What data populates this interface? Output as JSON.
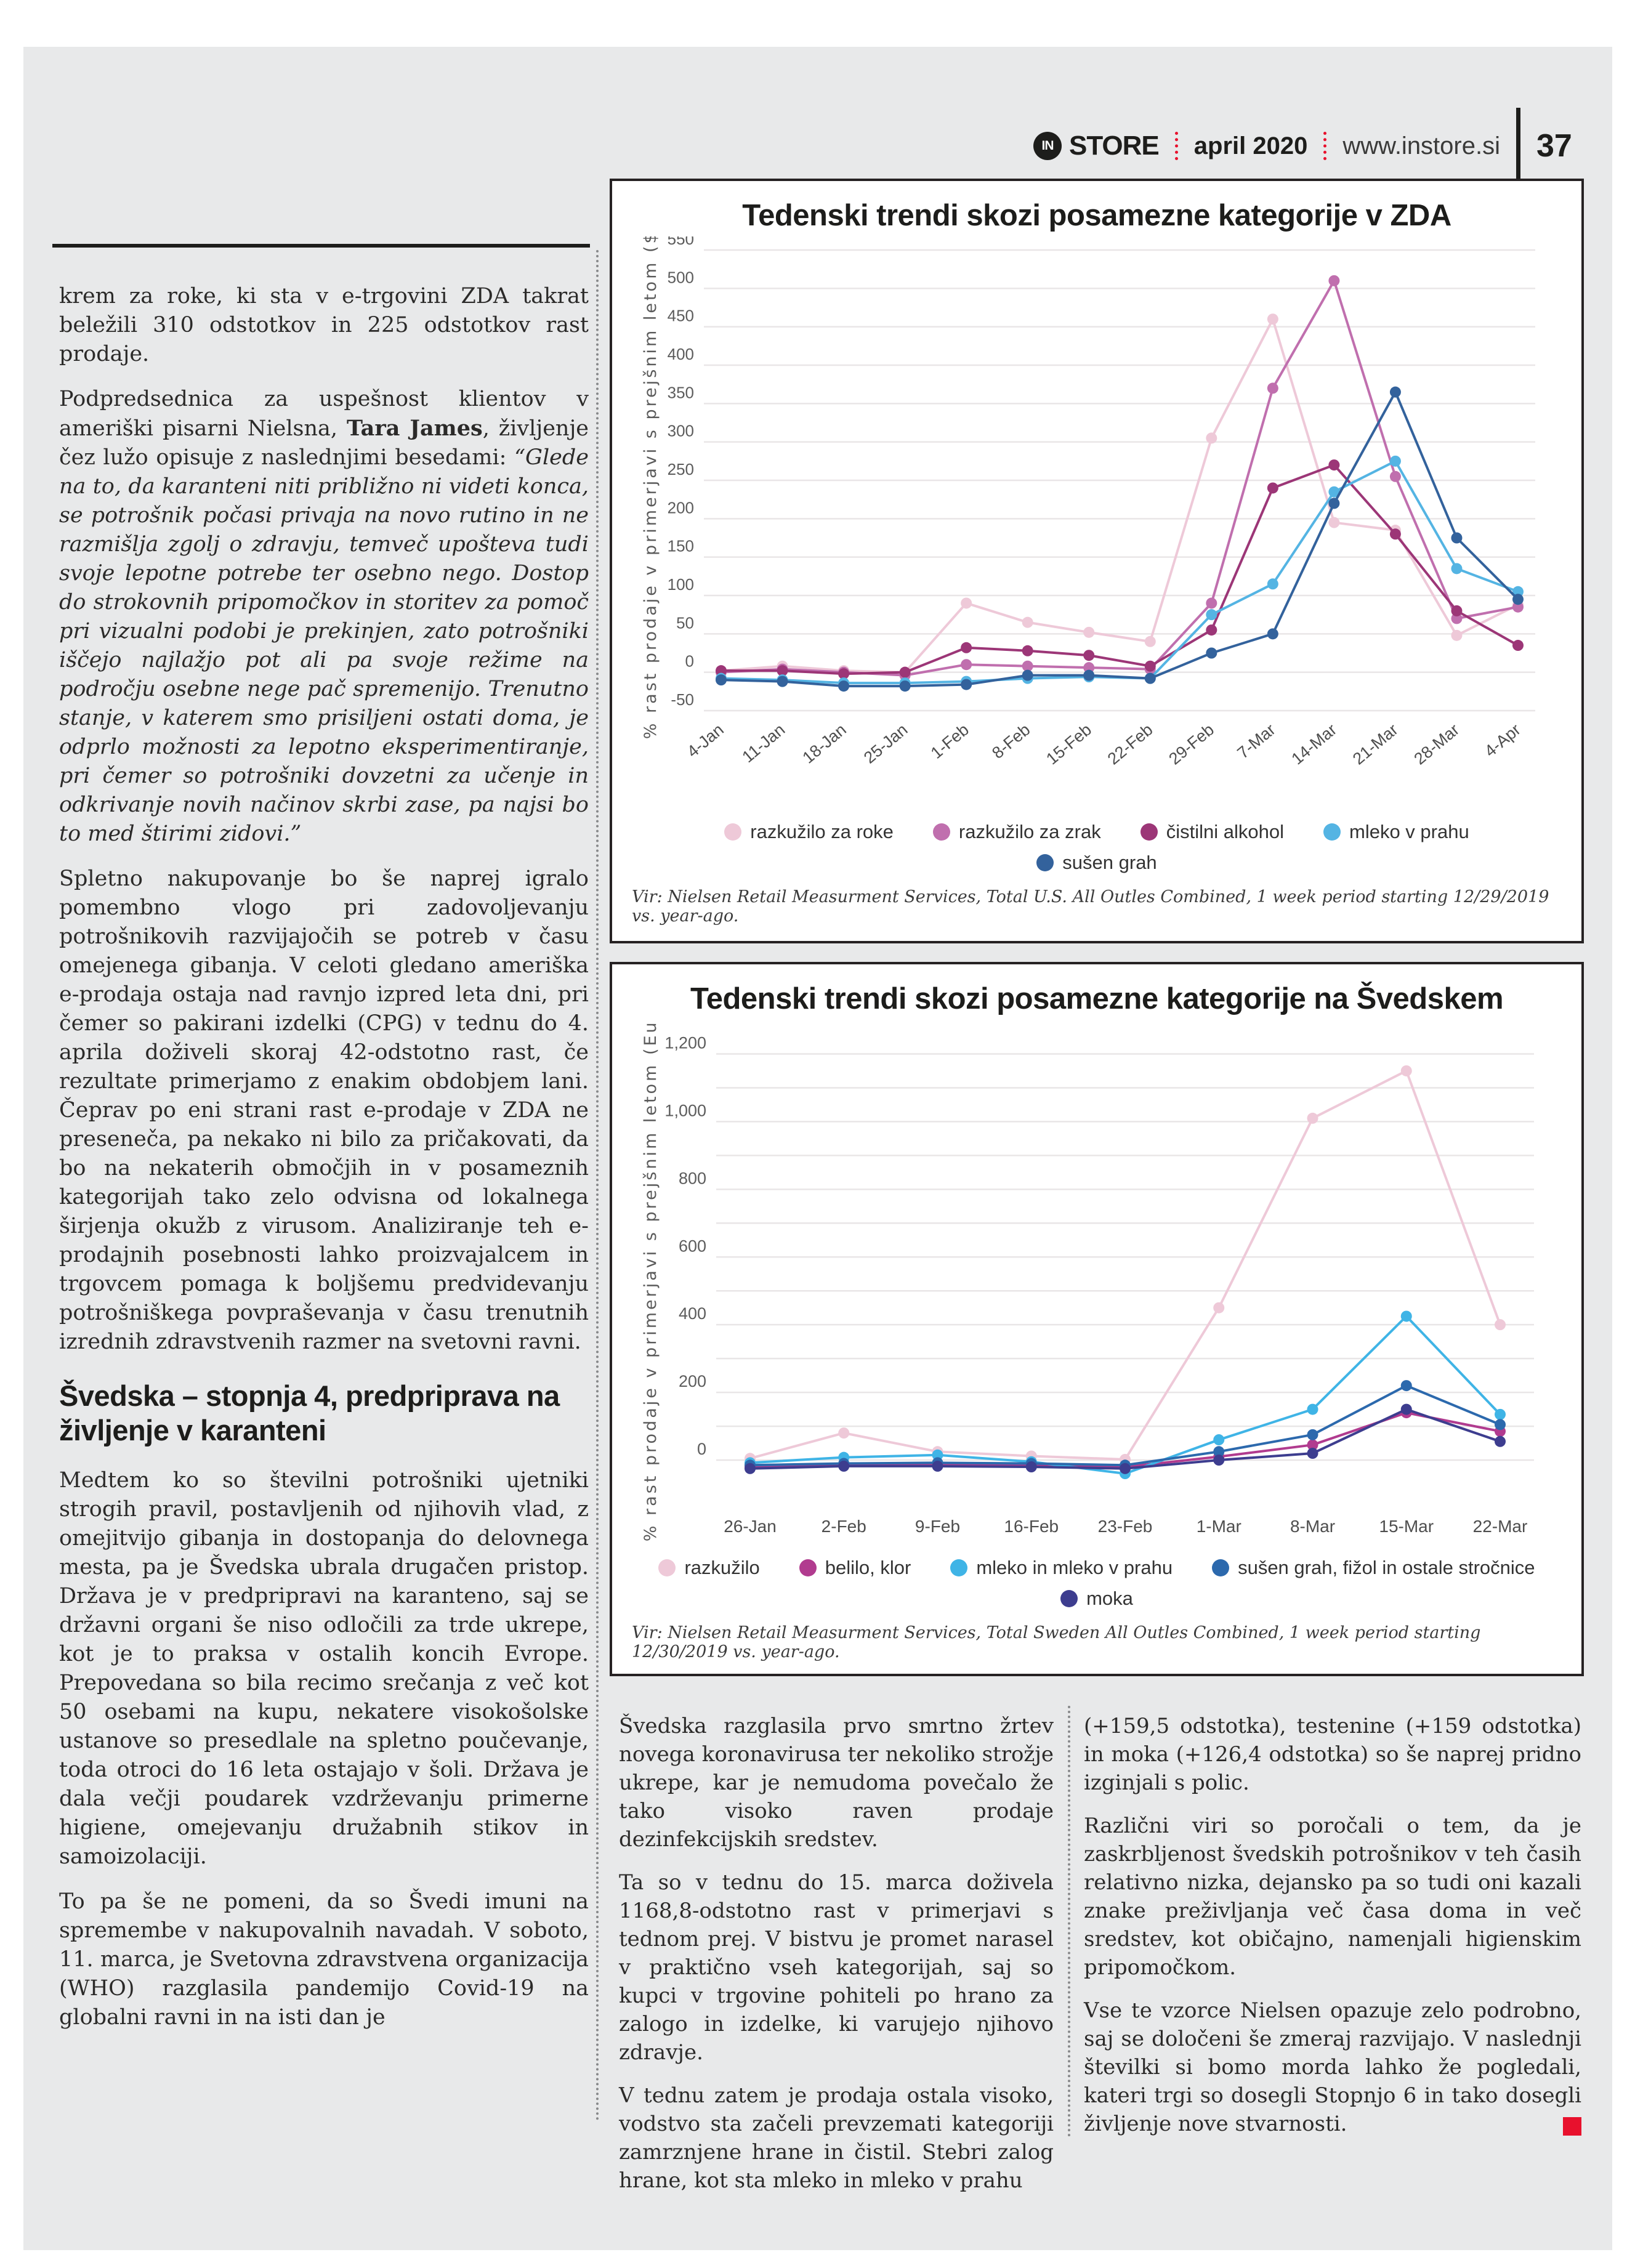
{
  "header": {
    "brand": "STORE",
    "brand_icon": "IN",
    "issue": "april 2020",
    "site": "www.instore.si",
    "page_number": "37"
  },
  "accent_color": "#e8112d",
  "left_column": {
    "p1": "krem za roke, ki sta v e-trgovini ZDA takrat beležili 310 odstotkov in 225 odstotkov rast prodaje.",
    "p2_intro": "Podpredsednica za uspešnost klientov v ameriški pisarni Nielsna, ",
    "p2_bold": "Tara James",
    "p2_mid": ", življenje čez lužo opisuje z naslednjimi besedami: ",
    "p2_quote": "“Glede na to, da karanteni niti približno ni videti konca, se potrošnik počasi privaja na novo rutino in ne razmišlja zgolj o zdravju, temveč upošteva tudi svoje lepotne potrebe ter osebno nego. Dostop do strokovnih pripomočkov in storitev za pomoč pri vizualni podobi je prekinjen, zato potrošniki iščejo najlažjo pot ali pa svoje režime na področju osebne nege pač spremenijo. Trenutno stanje, v katerem smo prisiljeni ostati doma, je odprlo možnosti za lepotno eksperimentiranje, pri čemer so potrošniki dovzetni za učenje in odkrivanje novih načinov skrbi zase, pa najsi bo to med štirimi zidovi.”",
    "p3": "Spletno nakupovanje bo še naprej igralo pomembno vlogo pri zadovoljevanju potrošnikovih razvijajočih se potreb v času omejenega gibanja. V celoti gledano ameriška e-prodaja ostaja nad ravnjo izpred leta dni, pri čemer so pakirani izdelki (CPG) v tednu do 4. aprila doživeli skoraj 42-odstotno rast, če rezultate primerjamo z enakim obdobjem lani. Čeprav po eni strani rast e-prodaje v ZDA ne preseneča, pa nekako ni bilo za pričakovati, da bo na nekaterih območjih in v posameznih kategorijah tako zelo odvisna od lokalnega širjenja okužb z virusom. Analiziranje teh e-prodajnih posebnosti lahko proizvajalcem in trgovcem pomaga k boljšemu predvidevanju potrošniškega povpraševanja v času trenutnih izrednih zdravstvenih razmer na svetovni ravni.",
    "heading": "Švedska – stopnja 4, predpriprava na življenje v karanteni",
    "p4": "Medtem ko so številni potrošniki ujetniki strogih pravil, postavljenih od njihovih vlad, z omejitvijo gibanja in dostopanja do delovnega mesta, pa je Švedska ubrala drugačen pristop. Država je v predpripravi na karanteno, saj se državni organi še niso odločili za trde ukrepe, kot je to praksa v ostalih koncih Evrope. Prepovedana so bila recimo srečanja z več kot 50 osebami na kupu, nekatere visokošolske ustanove so presedlale na spletno poučevanje, toda otroci do 16 leta ostajajo v šoli. Država je dala večji poudarek vzdrževanju primerne higiene, omejevanju družabnih stikov in samoizolaciji.",
    "p5": "To pa še ne pomeni, da so Švedi imuni na spremembe v nakupovalnih navadah. V soboto, 11. marca, je Svetovna zdravstvena organizacija (WHO) razglasila pandemijo Covid-19 na globalni ravni in na isti dan je"
  },
  "bottom_middle": {
    "p1": "Švedska razglasila prvo smrtno žrtev novega koronavirusa ter nekoliko strožje ukrepe, kar je nemudoma povečalo že tako visoko raven prodaje dezinfekcijskih sredstev.",
    "p2": "Ta so v tednu do 15. marca doživela 1168,8-odstotno rast v primerjavi s tednom prej. V bistvu je promet narasel v praktično vseh kategorijah, saj so kupci v trgovine pohiteli po hrano za zalogo in izdelke, ki varujejo njihovo zdravje.",
    "p3": "V tednu zatem je prodaja ostala visoko, vodstvo sta začeli prevzemati kategoriji zamrznjene hrane in čistil. Stebri zalog hrane, kot sta mleko in mleko v prahu"
  },
  "bottom_right": {
    "p1": "(+159,5 odstotka), testenine (+159 odstotka) in moka (+126,4 odstotka) so še naprej pridno izginjali s polic.",
    "p2": "Različni viri so poročali o tem, da je zaskrbljenost švedskih potrošnikov v teh časih relativno nizka, dejansko pa so tudi oni kazali znake preživljanja več časa doma in več sredstev, kot običajno, namenjali higienskim pripomočkom.",
    "p3": "Vse te vzorce Nielsen opazuje zelo podrobno, saj se določeni še zmeraj razvijajo. V naslednji številki si bomo morda lahko že pogledali, kateri trgi so dosegli Stopnjo 6 in tako dosegli življenje nove stvarnosti."
  },
  "chart_data": [
    {
      "type": "line",
      "title": "Tedenski trendi skozi posamezne kategorije v ZDA",
      "ylabel": "% rast prodaje v primerjavi s prejšnim letom ($)",
      "source": "Vir: Nielsen Retail Measurment Services, Total U.S. All Outles Combined, 1 week period starting 12/29/2019 vs. year-ago.",
      "categories": [
        "4-Jan",
        "11-Jan",
        "18-Jan",
        "25-Jan",
        "1-Feb",
        "8-Feb",
        "15-Feb",
        "22-Feb",
        "29-Feb",
        "7-Mar",
        "14-Mar",
        "21-Mar",
        "28-Mar",
        "4-Apr"
      ],
      "ylim": [
        -50,
        550
      ],
      "yticks": {
        "min": -50,
        "max": 550,
        "step": 50,
        "label_every": 50
      },
      "grid": true,
      "legend_position": "bottom",
      "x_label_rotation": 40,
      "series": [
        {
          "name": "razkužilo za roke",
          "color": "#eec9d8",
          "values": [
            2,
            8,
            2,
            0,
            90,
            65,
            52,
            40,
            305,
            460,
            195,
            185,
            48,
            88
          ]
        },
        {
          "name": "razkužilo za zrak",
          "color": "#c06fae",
          "values": [
            0,
            4,
            0,
            -4,
            10,
            8,
            6,
            4,
            90,
            370,
            510,
            255,
            70,
            85
          ]
        },
        {
          "name": "čistilni alkohol",
          "color": "#9c3677",
          "values": [
            2,
            2,
            -2,
            0,
            32,
            28,
            22,
            8,
            55,
            240,
            270,
            180,
            80,
            35
          ]
        },
        {
          "name": "mleko v prahu",
          "color": "#54b4e3",
          "values": [
            -8,
            -10,
            -14,
            -14,
            -12,
            -8,
            -6,
            -8,
            75,
            115,
            235,
            275,
            135,
            105
          ]
        },
        {
          "name": "sušen grah",
          "color": "#33629c",
          "values": [
            -10,
            -12,
            -18,
            -18,
            -16,
            -4,
            -4,
            -8,
            25,
            50,
            220,
            365,
            175,
            95
          ]
        }
      ]
    },
    {
      "type": "line",
      "title": "Tedenski trendi skozi posamezne kategorije na Švedskem",
      "ylabel": "% rast prodaje v primerjavi s prejšnim letom (Euro)",
      "source": "Vir: Nielsen Retail Measurment Services, Total Sweden All Outles Combined, 1 week period starting 12/30/2019 vs. year-ago.",
      "categories": [
        "26-Jan",
        "2-Feb",
        "9-Feb",
        "16-Feb",
        "23-Feb",
        "1-Mar",
        "8-Mar",
        "15-Mar",
        "22-Mar"
      ],
      "ylim": [
        -100,
        1250
      ],
      "yticks": {
        "min": 0,
        "max": 1200,
        "step": 100,
        "label_every": 200
      },
      "grid": true,
      "legend_position": "bottom",
      "x_label_rotation": 0,
      "series": [
        {
          "name": "razkužilo",
          "color": "#eec9d8",
          "values": [
            5,
            80,
            25,
            12,
            2,
            450,
            1010,
            1150,
            400
          ]
        },
        {
          "name": "belilo, klor",
          "color": "#b13b8f",
          "values": [
            -20,
            -12,
            -12,
            -15,
            -20,
            10,
            45,
            140,
            85
          ]
        },
        {
          "name": "mleko in mleko v prahu",
          "color": "#3fb4e6",
          "values": [
            -8,
            8,
            15,
            -5,
            -40,
            60,
            150,
            425,
            135
          ]
        },
        {
          "name": "sušen grah, fižol in ostale stročnice",
          "color": "#2c69ad",
          "values": [
            -15,
            -10,
            -8,
            -10,
            -15,
            25,
            75,
            220,
            105
          ]
        },
        {
          "name": "moka",
          "color": "#3d3d8f",
          "values": [
            -25,
            -18,
            -18,
            -20,
            -25,
            0,
            20,
            150,
            55
          ]
        }
      ]
    }
  ]
}
